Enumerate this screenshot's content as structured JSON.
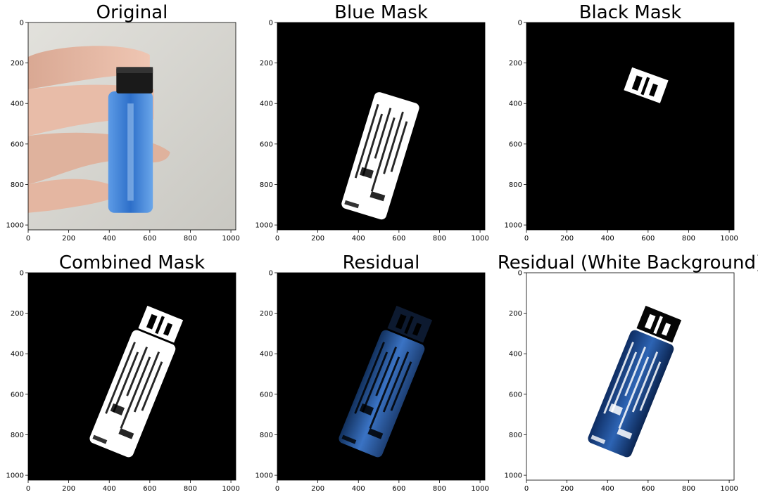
{
  "panels": [
    {
      "id": "original",
      "title": "Original",
      "kind": "original"
    },
    {
      "id": "blue-mask",
      "title": "Blue Mask",
      "kind": "mask-blue"
    },
    {
      "id": "black-mask",
      "title": "Black Mask",
      "kind": "mask-black"
    },
    {
      "id": "combined-mask",
      "title": "Combined Mask",
      "kind": "mask-combined"
    },
    {
      "id": "residual",
      "title": "Residual",
      "kind": "residual"
    },
    {
      "id": "residual-white",
      "title": "Residual (White Background)",
      "kind": "residual-white"
    }
  ],
  "axis": {
    "xticks": [
      "0",
      "200",
      "400",
      "600",
      "800",
      "1000"
    ],
    "yticks": [
      "0",
      "200",
      "400",
      "600",
      "800",
      "1000"
    ],
    "range": [
      0,
      1024
    ]
  },
  "colors": {
    "mask_bg": "#000000",
    "mask_fg": "#ffffff",
    "lighter_blue": "#3a7fd8",
    "residual_blue": "#2b5a9c",
    "photo_bg": "#d9d8d3",
    "skin": "#e6b9a4"
  }
}
